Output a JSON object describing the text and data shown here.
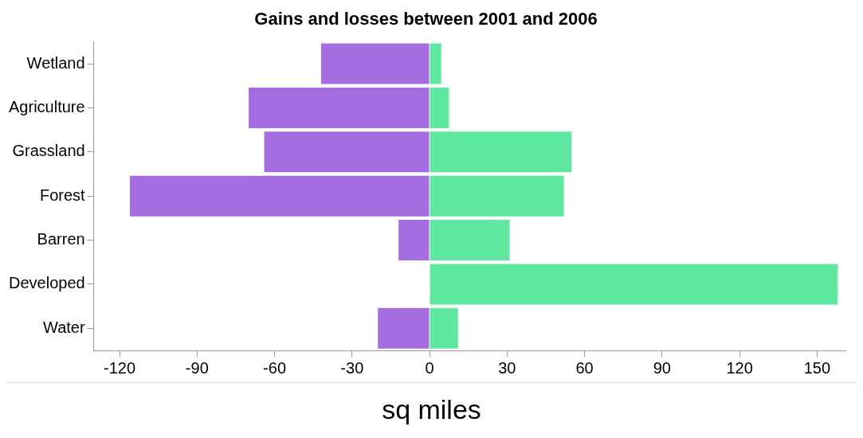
{
  "chart_data": {
    "type": "bar",
    "title": "Gains and losses between 2001 and 2006",
    "xlabel": "sq miles",
    "orientation": "horizontal",
    "stacked": true,
    "categories": [
      "Wetland",
      "Agriculture",
      "Grassland",
      "Forest",
      "Barren",
      "Developed",
      "Water"
    ],
    "series": [
      {
        "color": "#a66de0",
        "values": [
          -42,
          -70,
          -64,
          -116,
          -12,
          null,
          -20
        ]
      },
      {
        "color": "#5ee8a0",
        "values": [
          4.5,
          7.5,
          55,
          52,
          31,
          158,
          11
        ]
      }
    ],
    "xlim": [
      -130,
      161
    ],
    "xticks": [
      -120,
      -90,
      -60,
      -30,
      0,
      30,
      60,
      90,
      120,
      150
    ],
    "grid": false,
    "legend": false
  }
}
